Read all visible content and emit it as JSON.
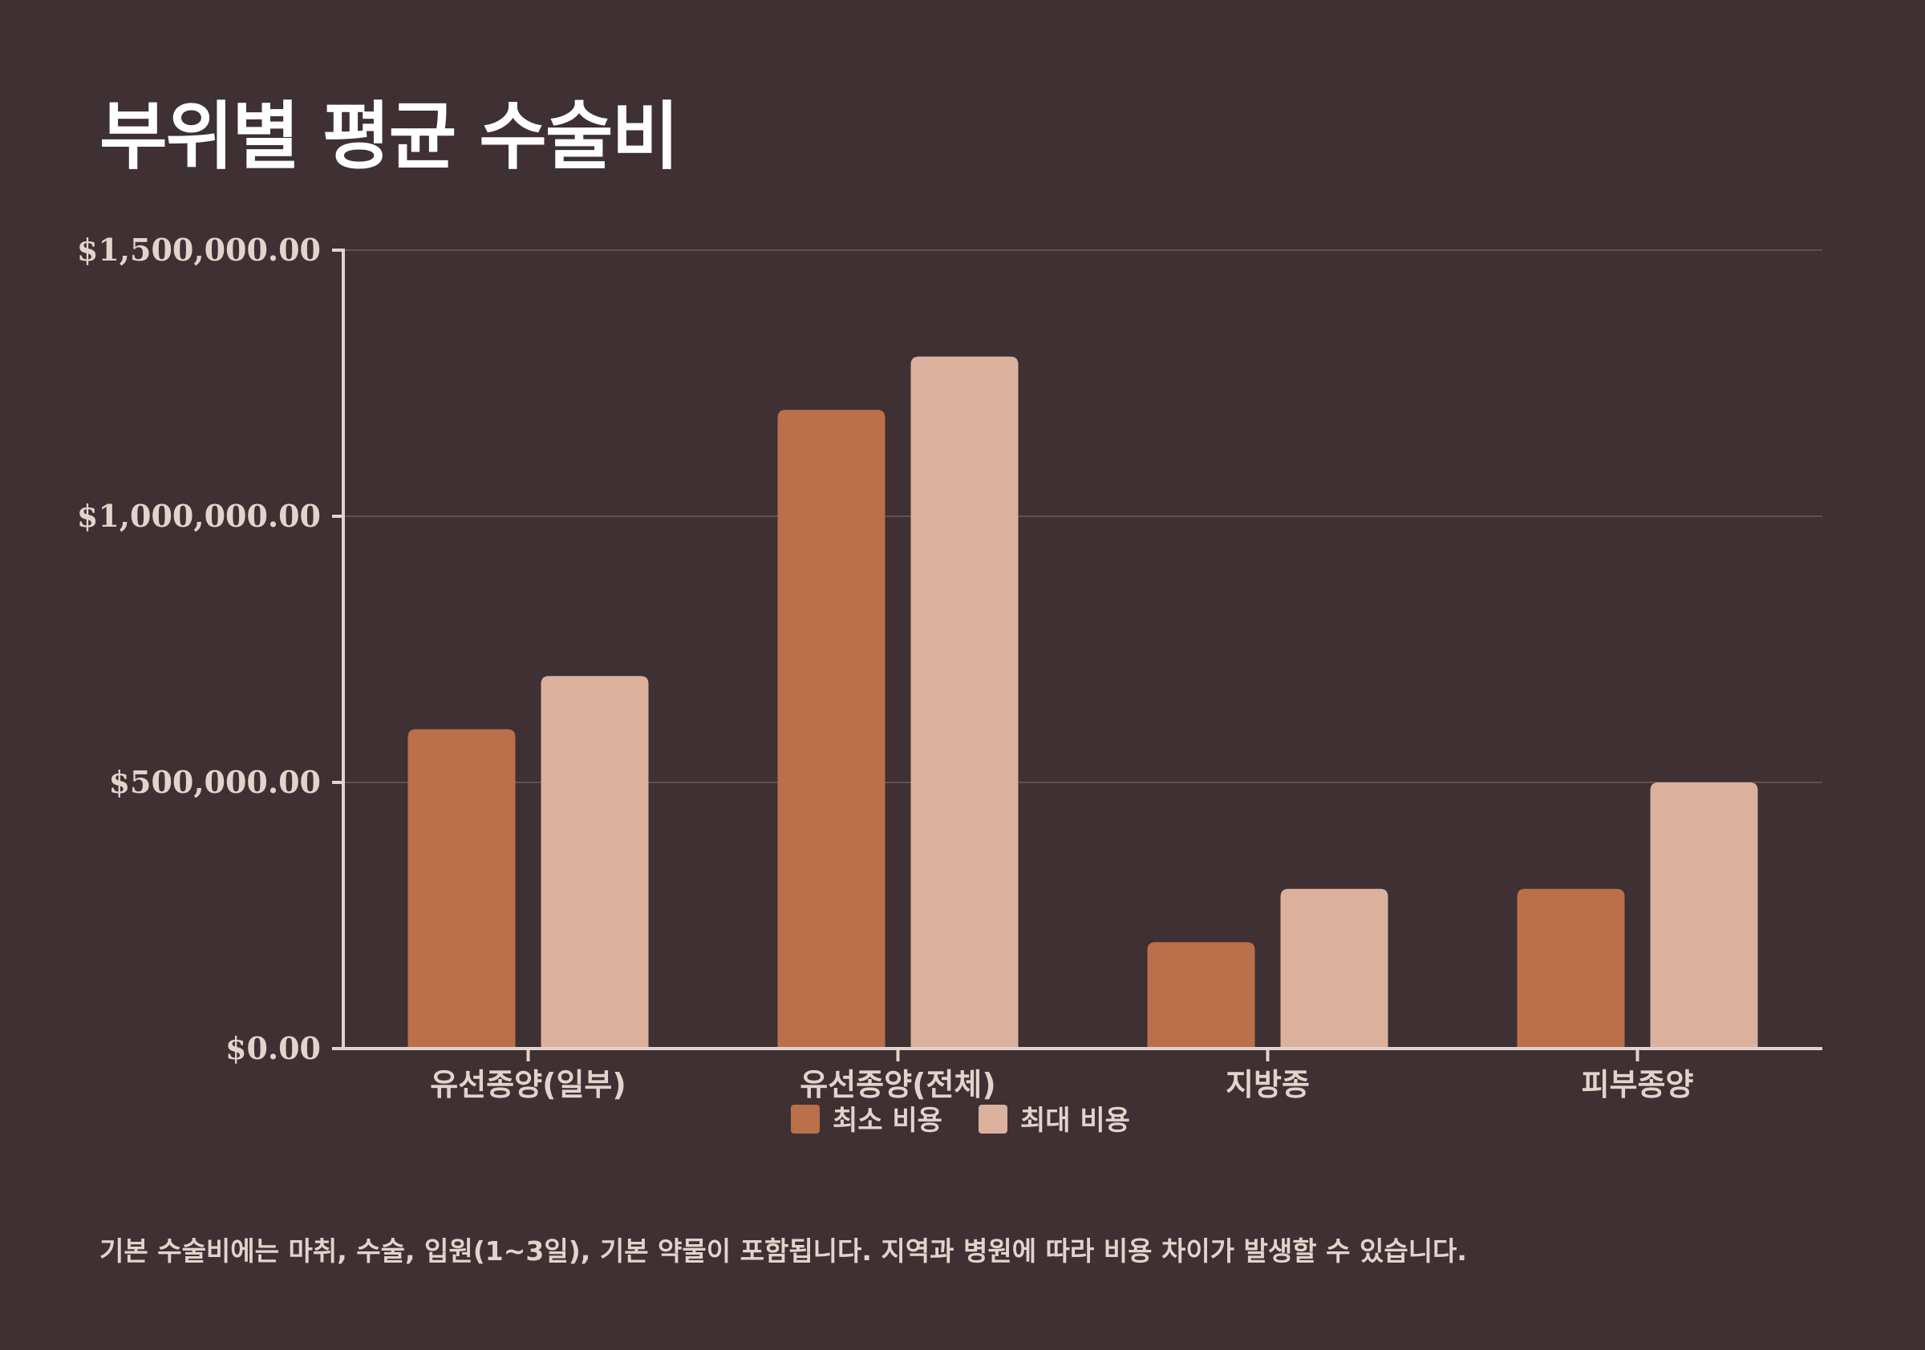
{
  "colors": {
    "background": "#3e3033",
    "min_series": "#bb6f4b",
    "max_series": "#dbb19e",
    "axis": "#e3d3cd",
    "grid": "#5e5053"
  },
  "chart_data": {
    "type": "bar",
    "title": "부위별 평균 수술비",
    "categories": [
      "유선종양(일부)",
      "유선종양(전체)",
      "지방종",
      "피부종양"
    ],
    "series": [
      {
        "name": "최소 비용",
        "values": [
          600000,
          1200000,
          200000,
          300000
        ]
      },
      {
        "name": "최대 비용",
        "values": [
          700000,
          1300000,
          300000,
          500000
        ]
      }
    ],
    "ylim": [
      0,
      1500000
    ],
    "yticks": [
      0,
      500000,
      1000000,
      1500000
    ],
    "ytick_labels": [
      "$0.00",
      "$500,000.00",
      "$1,000,000.00",
      "$1,500,000.00"
    ],
    "xlabel": "",
    "ylabel": "",
    "legend_position": "bottom-center",
    "grid": true
  },
  "footnote": "기본 수술비에는 마취, 수술, 입원(1~3일), 기본 약물이 포함됩니다. 지역과 병원에 따라 비용 차이가 발생할 수 있습니다."
}
